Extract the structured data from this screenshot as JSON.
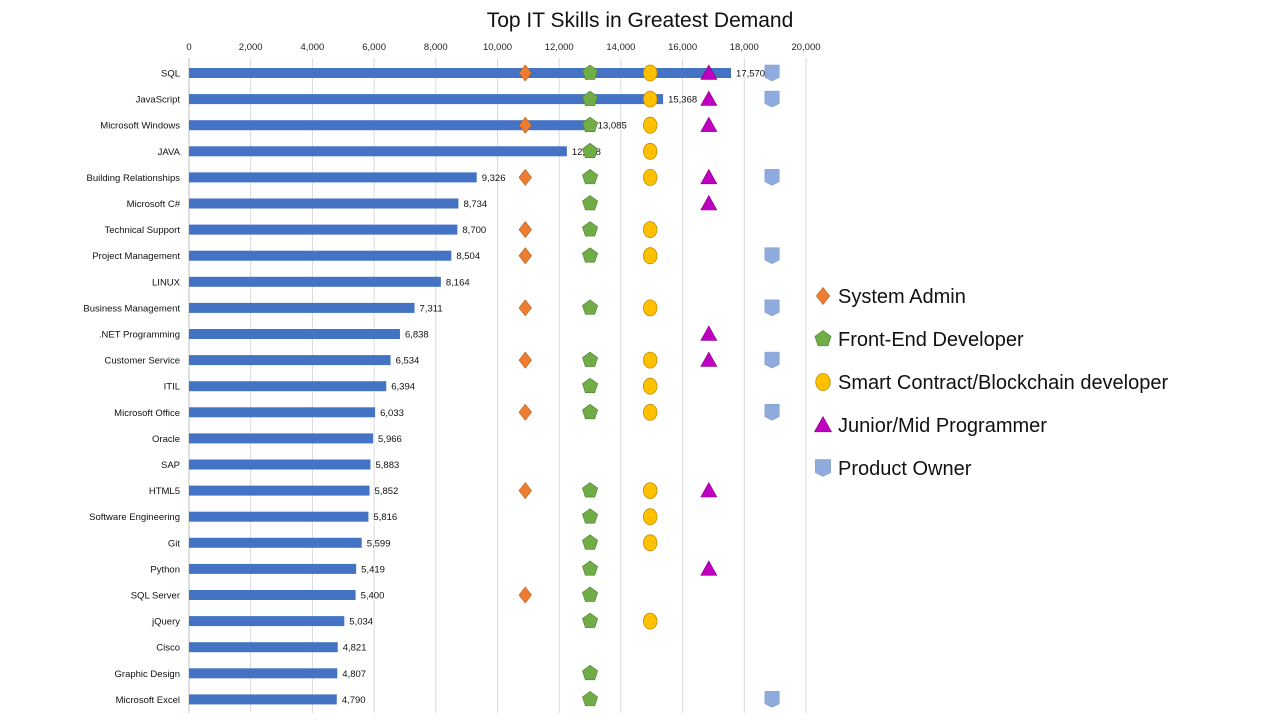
{
  "chart_data": {
    "type": "bar",
    "orientation": "horizontal",
    "title": "Top IT Skills in Greatest Demand",
    "xlabel": "",
    "ylabel": "",
    "xlim": [
      0,
      20000
    ],
    "x_ticks": [
      "0",
      "2,000",
      "4,000",
      "6,000",
      "8,000",
      "10,000",
      "12,000",
      "14,000",
      "16,000",
      "18,000",
      "20,000"
    ],
    "x_axis_position": "top",
    "grid": "vertical",
    "bar_color": "#4472C4",
    "categories": [
      "SQL",
      "JavaScript",
      "Microsoft Windows",
      "JAVA",
      "Building Relationships",
      "Microsoft C#",
      "Technical Support",
      "Project Management",
      "LINUX",
      "Business Management",
      ".NET Programming",
      "Customer Service",
      "ITIL",
      "Microsoft Office",
      "Oracle",
      "SAP",
      "HTML5",
      "Software Engineering",
      "Git",
      "Python",
      "SQL Server",
      "jQuery",
      "Cisco",
      "Graphic Design",
      "Microsoft Excel"
    ],
    "values": [
      17570,
      15368,
      13085,
      12248,
      9326,
      8734,
      8700,
      8504,
      8164,
      7311,
      6838,
      6534,
      6394,
      6033,
      5966,
      5883,
      5852,
      5816,
      5599,
      5419,
      5400,
      5034,
      4821,
      4807,
      4790
    ],
    "value_labels": [
      "17,570",
      "15,368",
      "13,085",
      "12,248",
      "9,326",
      "8,734",
      "8,700",
      "8,504",
      "8,164",
      "7,311",
      "6,838",
      "6,534",
      "6,394",
      "6,033",
      "5,966",
      "5,883",
      "5,852",
      "5,816",
      "5,599",
      "5,419",
      "5,400",
      "5,034",
      "4,821",
      "4,807",
      "4,790"
    ],
    "legend_position": "right",
    "marker_series": [
      {
        "name": "System Admin",
        "shape": "diamond",
        "color": "#ED7D31",
        "x": 10900,
        "categories": [
          "SQL",
          "Microsoft Windows",
          "Building Relationships",
          "Technical Support",
          "Project Management",
          "Business Management",
          "Customer Service",
          "Microsoft Office",
          "HTML5",
          "SQL Server"
        ]
      },
      {
        "name": "Front-End Developer",
        "shape": "pentagon",
        "color": "#70AD47",
        "x": 13000,
        "categories": [
          "SQL",
          "JavaScript",
          "Microsoft Windows",
          "JAVA",
          "Building Relationships",
          "Microsoft C#",
          "Technical Support",
          "Project Management",
          "Business Management",
          "Customer Service",
          "ITIL",
          "Microsoft Office",
          "HTML5",
          "Software Engineering",
          "Git",
          "Python",
          "SQL Server",
          "jQuery",
          "Graphic Design",
          "Microsoft Excel"
        ]
      },
      {
        "name": "Smart Contract/Blockchain developer",
        "shape": "circle",
        "color": "#FFC000",
        "x": 14950,
        "categories": [
          "SQL",
          "JavaScript",
          "Microsoft Windows",
          "JAVA",
          "Building Relationships",
          "Technical Support",
          "Project Management",
          "Business Management",
          "Customer Service",
          "ITIL",
          "Microsoft Office",
          "HTML5",
          "Software Engineering",
          "Git",
          "jQuery"
        ]
      },
      {
        "name": "Junior/Mid Programmer",
        "shape": "triangle",
        "color": "#C000C0",
        "x": 16850,
        "categories": [
          "SQL",
          "JavaScript",
          "Microsoft Windows",
          "Building Relationships",
          "Microsoft C#",
          ".NET Programming",
          "Customer Service",
          "HTML5",
          "Python"
        ]
      },
      {
        "name": "Product Owner",
        "shape": "shield",
        "color": "#8FAADC",
        "x": 18900,
        "categories": [
          "SQL",
          "JavaScript",
          "Building Relationships",
          "Project Management",
          "Business Management",
          "Customer Service",
          "Microsoft Office",
          "Microsoft Excel"
        ]
      }
    ]
  }
}
